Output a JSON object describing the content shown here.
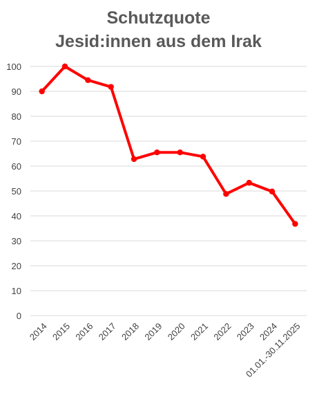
{
  "chart_data": {
    "type": "line",
    "title": "Schutzquote",
    "subtitle": "Jesid:innen aus dem Irak",
    "xlabel": "",
    "ylabel": "",
    "categories": [
      "2014",
      "2015",
      "2016",
      "2017",
      "2018",
      "2019",
      "2020",
      "2021",
      "2022",
      "2023",
      "2024",
      "01.01.-30.11.2025"
    ],
    "series": [
      {
        "values": [
          90,
          100,
          94.5,
          91.8,
          62.8,
          65.5,
          65.5,
          63.8,
          48.8,
          53.3,
          49.8,
          36.8
        ]
      }
    ],
    "ylim": [
      0,
      100
    ],
    "yticks": [
      0,
      10,
      20,
      30,
      40,
      50,
      60,
      70,
      80,
      90,
      100
    ],
    "grid": true,
    "legend": "none",
    "colors": {
      "line": "#ff0000",
      "grid": "#d9d9d9",
      "title": "#595959",
      "tick": "#404040"
    }
  }
}
